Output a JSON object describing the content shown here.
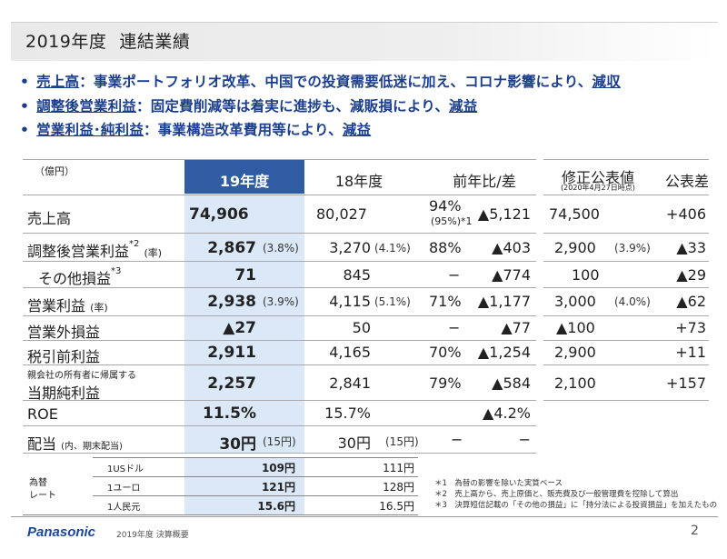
{
  "title": {
    "year": "2019年度",
    "text": "連結業績"
  },
  "bullets": [
    {
      "term": "売上高",
      "text": "：事業ポートフォリオ改革、中国での投資需要低迷に加え、コロナ影響により、",
      "result": "減収"
    },
    {
      "term": "調整後営業利益",
      "text": "：固定費削減等は着実に進捗も、減販損により、",
      "result": "減益"
    },
    {
      "term": "営業利益･純利益",
      "text": "：事業構造改革費用等により、",
      "result": "減益"
    }
  ],
  "table": {
    "unit": "（億円）",
    "headers": {
      "fy19": "19年度",
      "fy18": "18年度",
      "yoy": "前年比/差",
      "revised": "修正公表値",
      "revised_date": "(2020年4月27日時点)",
      "diff": "公表差"
    },
    "rows": [
      {
        "label": "売上高",
        "fy19": "74,906",
        "fy18": "80,027",
        "yoy_pct": "94%",
        "yoy_sub": "(95%)*1",
        "yoy_diff": "▲5,121",
        "revised": "74,500",
        "diff": "+406"
      },
      {
        "label": "調整後営業利益",
        "label_sup": "*2",
        "label_note": "(率)",
        "fy19": "2,867",
        "fy19_rate": "(3.8%)",
        "fy18": "3,270",
        "fy18_rate": "(4.1%)",
        "yoy_pct": "88%",
        "yoy_diff": "▲403",
        "revised": "2,900",
        "revised_rate": "(3.9%)",
        "diff": "▲33"
      },
      {
        "label": "その他損益",
        "label_sup": "*3",
        "fy19": "71",
        "fy18": "845",
        "yoy_pct": "−",
        "yoy_diff": "▲774",
        "revised": "100",
        "diff": "▲29"
      },
      {
        "label": "営業利益",
        "label_note": "(率)",
        "fy19": "2,938",
        "fy19_rate": "(3.9%)",
        "fy18": "4,115",
        "fy18_rate": "(5.1%)",
        "yoy_pct": "71%",
        "yoy_diff": "▲1,177",
        "revised": "3,000",
        "revised_rate": "(4.0%)",
        "diff": "▲62"
      },
      {
        "label": "営業外損益",
        "fy19": "▲27",
        "fy18": "50",
        "yoy_pct": "−",
        "yoy_diff": "▲77",
        "revised": "▲100",
        "diff": "+73"
      },
      {
        "label": "税引前利益",
        "fy19": "2,911",
        "fy18": "4,165",
        "yoy_pct": "70%",
        "yoy_diff": "▲1,254",
        "revised": "2,900",
        "diff": "+11"
      },
      {
        "label_top": "親会社の所有者に帰属する",
        "label": "当期純利益",
        "fy19": "2,257",
        "fy18": "2,841",
        "yoy_pct": "79%",
        "yoy_diff": "▲584",
        "revised": "2,100",
        "diff": "+157"
      },
      {
        "label": "ROE",
        "fy19": "11.5%",
        "fy18": "15.7%",
        "yoy_diff": "▲4.2%"
      },
      {
        "label": "配当",
        "label_note": "(内、期末配当)",
        "fy19": "30円",
        "fy19_rate": "(15円)",
        "fy18": "30円",
        "fy18_rate": "(15円)",
        "yoy_pct": "−",
        "yoy_diff": "−"
      }
    ]
  },
  "fx": {
    "label_line1": "為替",
    "label_line2": "レート",
    "rows": [
      {
        "currency": "1USドル",
        "fy19": "109円",
        "fy18": "111円"
      },
      {
        "currency": "1ユーロ",
        "fy19": "121円",
        "fy18": "128円"
      },
      {
        "currency": "1人民元",
        "fy19": "15.6円",
        "fy18": "16.5円"
      }
    ]
  },
  "notes": [
    "＊1　為替の影響を除いた実質ベース",
    "＊2　売上高から、売上原価と、販売費及び一般管理費を控除して算出",
    "＊3　決算短信記載の「その他の損益」に「持分法による投資損益」を加えたもの"
  ],
  "footer": {
    "logo": "Panasonic",
    "subtitle": "2019年度 決算概要",
    "page": "2"
  }
}
